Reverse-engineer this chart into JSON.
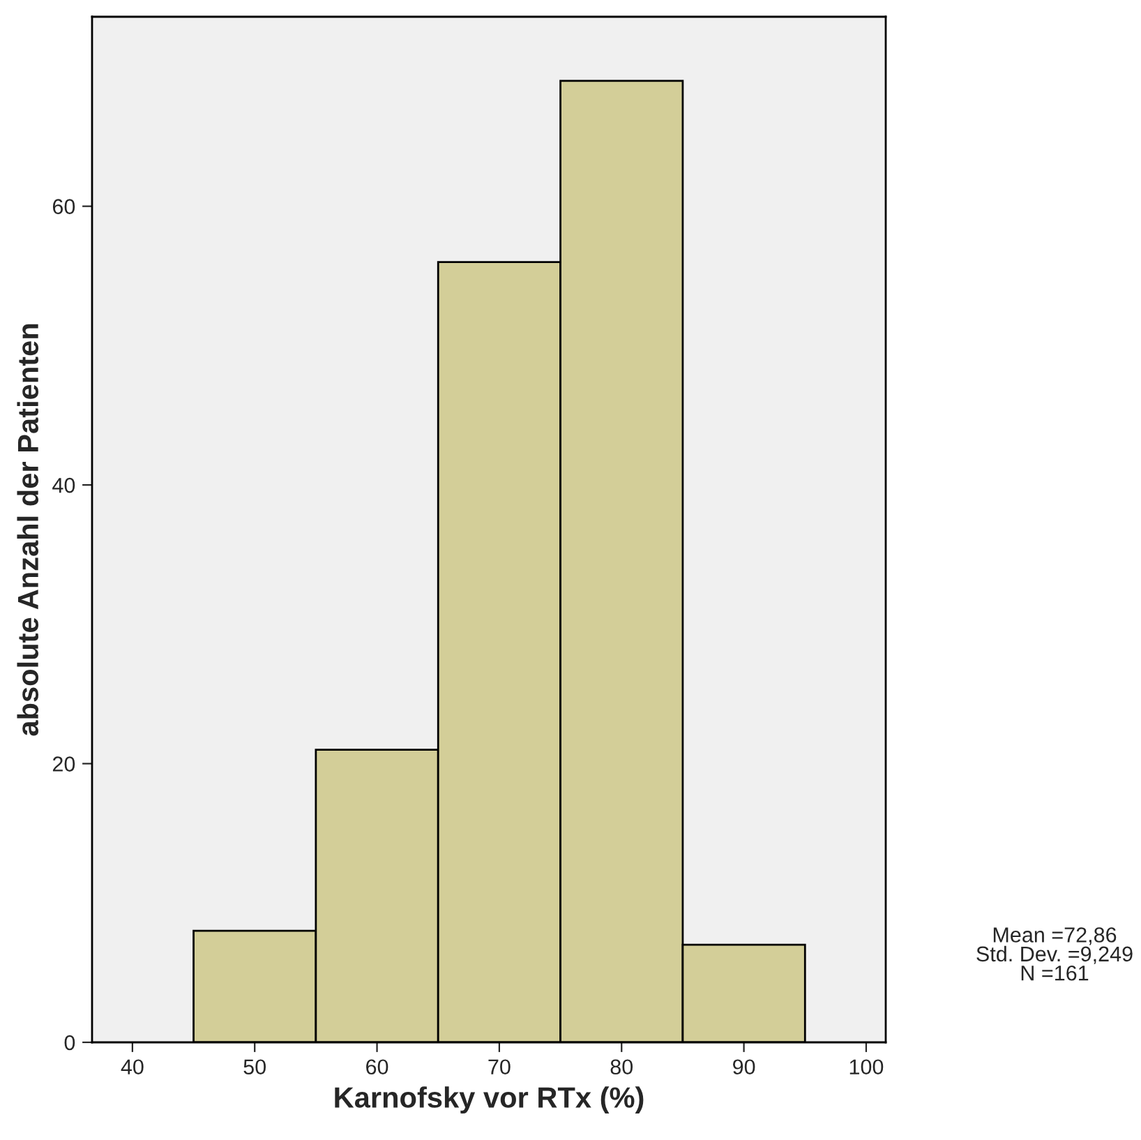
{
  "chart_data": {
    "type": "histogram",
    "xlabel": "Karnofsky vor RTx (%)",
    "ylabel": "absolute Anzahl der Patienten",
    "bins": [
      45,
      55,
      65,
      75,
      85,
      95
    ],
    "values": [
      8,
      21,
      56,
      69,
      7
    ],
    "color": "#d3ce98",
    "xlim": [
      36.7,
      101.6
    ],
    "xticks": [
      40,
      50,
      60,
      70,
      80,
      90,
      100
    ],
    "ylim": [
      0,
      73.6
    ],
    "yticks": [
      0,
      20,
      40,
      60
    ],
    "grid": false,
    "annotations": [
      "Mean =72,86\nStd. Dev. =9,249\nN =161"
    ]
  }
}
